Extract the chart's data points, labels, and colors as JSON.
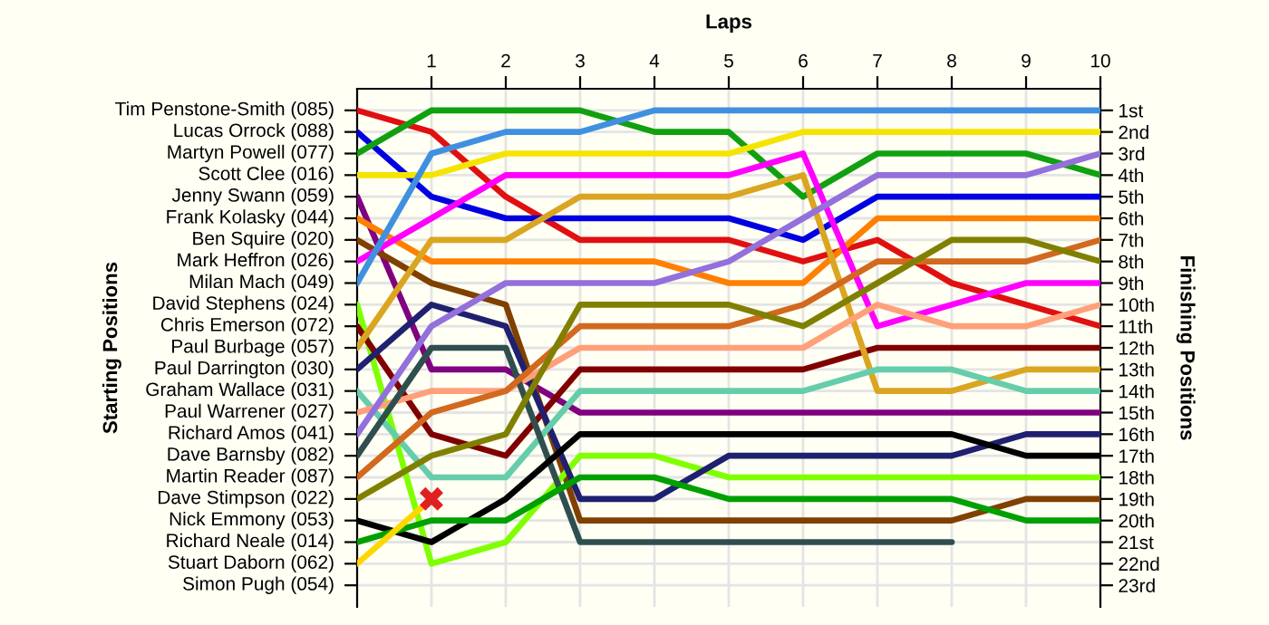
{
  "chart_data": {
    "type": "line",
    "xlabel": "Laps",
    "ylabel": "Finishing Positions",
    "x": [
      0,
      1,
      2,
      3,
      4,
      5,
      6,
      7,
      8,
      9,
      10
    ],
    "xlim": [
      0,
      10
    ],
    "xticks": [
      1,
      2,
      3,
      4,
      5,
      6,
      7,
      8,
      9,
      10
    ],
    "ylim": [
      24,
      0
    ],
    "yticks": [
      {
        "value": 1,
        "label": "1st"
      },
      {
        "value": 2,
        "label": "2nd"
      },
      {
        "value": 3,
        "label": "3rd"
      },
      {
        "value": 4,
        "label": "4th"
      },
      {
        "value": 5,
        "label": "5th"
      },
      {
        "value": 6,
        "label": "6th"
      },
      {
        "value": 7,
        "label": "7th"
      },
      {
        "value": 8,
        "label": "8th"
      },
      {
        "value": 9,
        "label": "9th"
      },
      {
        "value": 10,
        "label": "10th"
      },
      {
        "value": 11,
        "label": "11th"
      },
      {
        "value": 12,
        "label": "12th"
      },
      {
        "value": 13,
        "label": "13th"
      },
      {
        "value": 14,
        "label": "14th"
      },
      {
        "value": 15,
        "label": "15th"
      },
      {
        "value": 16,
        "label": "16th"
      },
      {
        "value": 17,
        "label": "17th"
      },
      {
        "value": 18,
        "label": "18th"
      },
      {
        "value": 19,
        "label": "19th"
      },
      {
        "value": 20,
        "label": "20th"
      },
      {
        "value": 21,
        "label": "21st"
      },
      {
        "value": 22,
        "label": "22nd"
      },
      {
        "value": 23,
        "label": "23rd"
      }
    ],
    "annotations": [
      "Starting Positions",
      "Tim Penstone-Smith (085)",
      "Lucas Orrock (088)",
      "Martyn Powell (077)",
      "Scott Clee (016)",
      "Jenny Swann (059)",
      "Frank Kolasky (044)",
      "Ben Squire (020)",
      "Mark Heffron (026)",
      "Milan Mach (049)",
      "David Stephens (024)",
      "Chris Emerson (072)",
      "Paul Burbage (057)",
      "Paul Darrington (030)",
      "Graham Wallace (031)",
      "Paul Warrener (027)",
      "Richard Amos (041)",
      "Dave Barnsby (082)",
      "Martin Reader (087)",
      "Dave Stimpson (022)",
      "Nick Emmony (053)",
      "Richard Neale (014)",
      "Stuart Daborn (062)",
      "Simon Pugh (054)"
    ],
    "grid": true,
    "series": [
      {
        "color": "#e01010",
        "values": [
          1,
          2,
          5,
          7,
          7,
          7,
          8,
          7,
          9,
          10,
          11
        ]
      },
      {
        "color": "#0000e0",
        "values": [
          2,
          5,
          6,
          6,
          6,
          6,
          7,
          5,
          5,
          5,
          5
        ]
      },
      {
        "color": "#10a010",
        "values": [
          3,
          1,
          1,
          1,
          2,
          2,
          5,
          3,
          3,
          3,
          4
        ]
      },
      {
        "color": "#f5e400",
        "values": [
          4,
          4,
          3,
          3,
          3,
          3,
          2,
          2,
          2,
          2,
          2
        ]
      },
      {
        "color": "#800080",
        "values": [
          5,
          13,
          13,
          15,
          15,
          15,
          15,
          15,
          15,
          15,
          15
        ]
      },
      {
        "color": "#ff8000",
        "values": [
          6,
          8,
          8,
          8,
          8,
          9,
          9,
          6,
          6,
          6,
          6
        ]
      },
      {
        "color": "#804000",
        "values": [
          7,
          9,
          10,
          20,
          20,
          20,
          20,
          20,
          20,
          19,
          19
        ]
      },
      {
        "color": "#ff00ff",
        "values": [
          8,
          6,
          4,
          4,
          4,
          4,
          3,
          11,
          10,
          9,
          9
        ]
      },
      {
        "color": "#4090e0",
        "values": [
          9,
          3,
          2,
          2,
          1,
          1,
          1,
          1,
          1,
          1,
          1
        ]
      },
      {
        "color": "#80ff00",
        "values": [
          10,
          22,
          21,
          17,
          17,
          18,
          18,
          18,
          18,
          18,
          18
        ]
      },
      {
        "color": "#800000",
        "values": [
          11,
          16,
          17,
          13,
          13,
          13,
          13,
          12,
          12,
          12,
          12
        ]
      },
      {
        "color": "#daa520",
        "values": [
          12,
          7,
          7,
          5,
          5,
          5,
          4,
          14,
          14,
          13,
          13
        ]
      },
      {
        "color": "#202070",
        "values": [
          13,
          10,
          11,
          19,
          19,
          17,
          17,
          17,
          17,
          16,
          16
        ]
      },
      {
        "color": "#66cdaa",
        "values": [
          14,
          18,
          18,
          14,
          14,
          14,
          14,
          13,
          13,
          14,
          14
        ]
      },
      {
        "color": "#ffa07a",
        "values": [
          15,
          14,
          14,
          12,
          12,
          12,
          12,
          10,
          11,
          11,
          10
        ]
      },
      {
        "color": "#9370db",
        "values": [
          16,
          11,
          9,
          9,
          9,
          8,
          6,
          4,
          4,
          4,
          3
        ]
      },
      {
        "color": "#2f4f4f",
        "values": [
          17,
          12,
          12,
          21,
          21,
          21,
          21,
          21,
          21,
          null,
          null
        ]
      },
      {
        "color": "#d2691e",
        "values": [
          18,
          15,
          14,
          11,
          11,
          11,
          10,
          8,
          8,
          8,
          7
        ]
      },
      {
        "color": "#808000",
        "values": [
          19,
          17,
          16,
          10,
          10,
          10,
          11,
          9,
          7,
          7,
          8
        ]
      },
      {
        "color": "#000000",
        "values": [
          20,
          21,
          19,
          16,
          16,
          16,
          16,
          16,
          16,
          17,
          17
        ]
      },
      {
        "color": "#00a000",
        "values": [
          21,
          20,
          20,
          18,
          18,
          19,
          19,
          19,
          19,
          20,
          20
        ]
      },
      {
        "color": "#ffd700",
        "values": [
          22,
          19,
          null,
          null,
          null,
          null,
          null,
          null,
          null,
          null,
          null
        ]
      },
      {
        "type": "scatter",
        "marker": "cross",
        "color": "#e02020",
        "x": [
          1
        ],
        "values": [
          19
        ]
      }
    ]
  }
}
